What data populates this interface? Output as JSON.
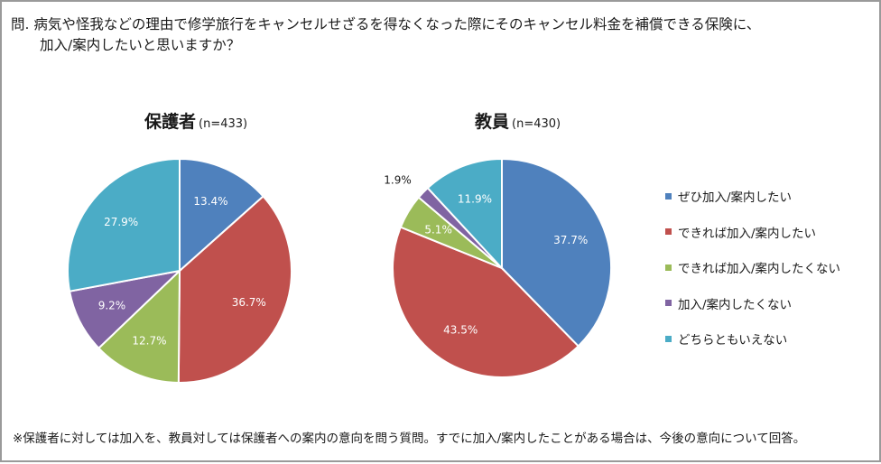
{
  "question": {
    "line1": "問. 病気や怪我などの理由で修学旅行をキャンセルせざるを得なくなった際にそのキャンセル料金を補償できる保険に、",
    "line2": "加入/案内したいと思いますか？"
  },
  "footnote": "※保護者に対しては加入を、教員対しては保護者への案内の意向を問う質問。すでに加入/案内したことがある場合は、今後の意向について回答。",
  "colors": {
    "blue": "#4f81bd",
    "red": "#c0504d",
    "green": "#9bbb59",
    "purple": "#8064a2",
    "teal": "#4bacc6"
  },
  "chart_data": [
    {
      "type": "pie",
      "title": "保護者",
      "subtitle": "(n=433)",
      "categories": [
        "ぜひ加入/案内したい",
        "できれば加入/案内したい",
        "できれば加入/案内したくない",
        "加入/案内したくない",
        "どちらともいえない"
      ],
      "values": [
        13.4,
        36.7,
        12.7,
        9.2,
        27.9
      ],
      "labels": [
        "13.4%",
        "36.7%",
        "12.7%",
        "9.2%",
        "27.9%"
      ],
      "colors": [
        "#4f81bd",
        "#c0504d",
        "#9bbb59",
        "#8064a2",
        "#4bacc6"
      ],
      "legend": "right"
    },
    {
      "type": "pie",
      "title": "教員",
      "subtitle": "(n=430)",
      "categories": [
        "ぜひ加入/案内したい",
        "できれば加入/案内したい",
        "できれば加入/案内したくない",
        "加入/案内したくない",
        "どちらともいえない"
      ],
      "values": [
        37.7,
        43.5,
        5.1,
        1.9,
        11.9
      ],
      "labels": [
        "37.7%",
        "43.5%",
        "5.1%",
        "1.9%",
        "11.9%"
      ],
      "colors": [
        "#4f81bd",
        "#c0504d",
        "#9bbb59",
        "#8064a2",
        "#4bacc6"
      ],
      "legend": "right"
    }
  ],
  "legend": {
    "items": [
      {
        "label": "ぜひ加入/案内したい",
        "color": "#4f81bd"
      },
      {
        "label": "できれば加入/案内したい",
        "color": "#c0504d"
      },
      {
        "label": "できれば加入/案内したくない",
        "color": "#9bbb59"
      },
      {
        "label": "加入/案内したくない",
        "color": "#8064a2"
      },
      {
        "label": "どちらともいえない",
        "color": "#4bacc6"
      }
    ]
  }
}
